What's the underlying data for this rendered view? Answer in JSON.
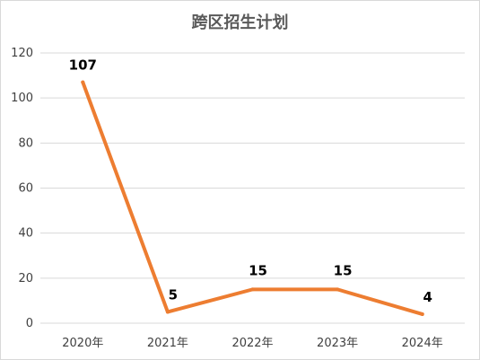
{
  "chart_data": {
    "type": "line",
    "title": "跨区招生计划",
    "categories": [
      "2020年",
      "2021年",
      "2022年",
      "2023年",
      "2024年"
    ],
    "series": [
      {
        "values": [
          107,
          5,
          15,
          15,
          4
        ],
        "color": "#ED7D31"
      }
    ],
    "ylim": [
      0,
      120
    ],
    "yticks": [
      "0",
      "20",
      "40",
      "60",
      "80",
      "100",
      "120"
    ],
    "grid": true,
    "legend": "none",
    "data_labels": true
  }
}
